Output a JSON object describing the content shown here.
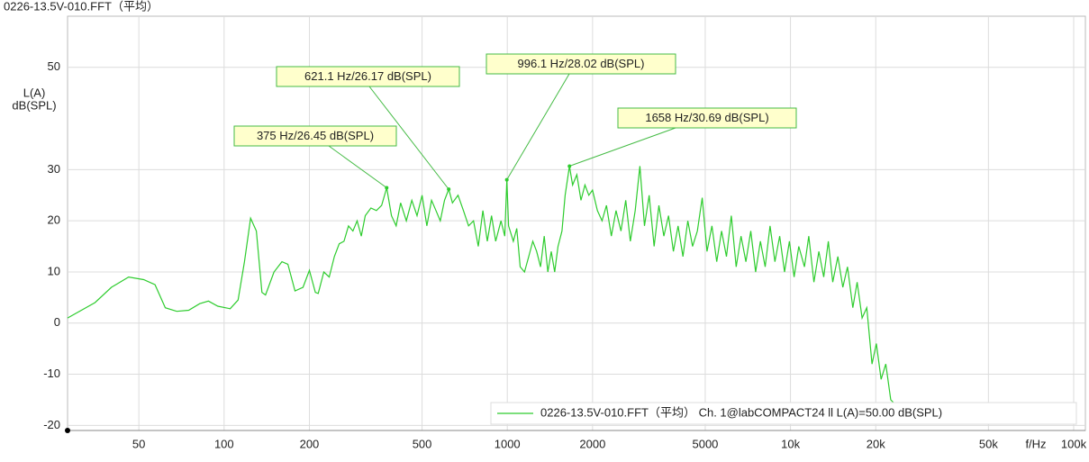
{
  "chart_data": {
    "type": "line",
    "title": "0226-13.5V-010.FFT（平均）",
    "ylabel": [
      "L(A)",
      "dB(SPL)"
    ],
    "xlabel": "f/Hz",
    "xscale": "log",
    "xlim": [
      28,
      110000
    ],
    "ylim": [
      -21,
      60
    ],
    "xticks": [
      50,
      100,
      200,
      500,
      1000,
      2000,
      5000,
      {
        "value": 10000,
        "label": "10k"
      },
      {
        "value": 20000,
        "label": "20k"
      },
      {
        "value": 50000,
        "label": "50k"
      },
      {
        "value": 100000,
        "label": "100k"
      }
    ],
    "yticks": [
      -20,
      -10,
      0,
      10,
      20,
      30,
      50
    ],
    "grid": true,
    "legend": "lower right",
    "x": [
      28,
      35,
      40,
      46,
      52,
      57,
      62,
      68,
      75,
      82,
      88,
      95,
      105,
      112,
      118,
      124,
      130,
      136,
      140,
      150,
      160,
      168,
      178,
      190,
      200,
      210,
      215,
      225,
      235,
      245,
      255,
      265,
      275,
      285,
      295,
      305,
      315,
      330,
      345,
      360,
      375,
      390,
      405,
      420,
      440,
      460,
      480,
      500,
      520,
      540,
      560,
      580,
      600,
      621.1,
      640,
      670,
      700,
      730,
      760,
      790,
      820,
      850,
      880,
      910,
      950,
      980,
      996.1,
      1010,
      1050,
      1080,
      1110,
      1150,
      1190,
      1230,
      1270,
      1310,
      1350,
      1390,
      1430,
      1470,
      1510,
      1560,
      1600,
      1658,
      1700,
      1760,
      1820,
      1880,
      1940,
      2000,
      2080,
      2160,
      2240,
      2330,
      2420,
      2520,
      2620,
      2720,
      2830,
      2940,
      3050,
      3170,
      3300,
      3430,
      3570,
      3710,
      3860,
      4010,
      4170,
      4340,
      4510,
      4690,
      4880,
      5070,
      5280,
      5490,
      5710,
      5940,
      6180,
      6430,
      6690,
      6960,
      7240,
      7530,
      7830,
      8140,
      8470,
      8810,
      9160,
      9530,
      9910,
      10300,
      10700,
      11200,
      11600,
      12100,
      12600,
      13100,
      13600,
      14100,
      14700,
      15300,
      15900,
      16600,
      17200,
      17900,
      18600,
      19400,
      20100,
      20900,
      21700,
      22600,
      23500
    ],
    "series": [
      {
        "name": "0226-13.5V-010.FFT（平均） Ch. 1@labCOMPACT24 ll L(A)=50.00 dB(SPL)",
        "color": "#2ecc2e",
        "values": [
          1,
          4,
          7,
          9,
          8.5,
          7.5,
          3,
          2.3,
          2.5,
          3.8,
          4.3,
          3.3,
          2.8,
          4.5,
          12,
          20.5,
          18,
          6,
          5.5,
          10,
          12,
          11.5,
          6.3,
          7,
          10.3,
          6,
          5.8,
          10,
          9,
          13,
          15.5,
          16,
          19,
          18,
          20,
          17,
          21,
          22.5,
          22,
          23,
          26.45,
          21,
          19,
          23.5,
          20,
          24,
          21,
          25,
          19,
          24,
          22,
          20,
          24,
          26.17,
          23.5,
          25,
          22,
          19,
          20,
          15,
          22,
          16,
          21,
          16,
          20,
          17,
          28.02,
          19,
          16,
          18.5,
          11,
          10,
          13,
          16,
          14,
          11,
          17,
          10,
          14,
          10,
          15,
          18,
          25,
          30.69,
          27,
          29,
          24,
          27,
          25,
          26,
          22,
          20,
          23,
          17,
          22,
          18,
          24,
          16,
          22,
          30.7,
          19,
          25,
          15,
          23,
          17,
          21,
          14,
          19,
          13,
          20,
          15,
          18,
          24.5,
          14,
          19,
          12,
          18,
          13,
          21,
          11,
          17,
          12,
          18,
          10,
          16,
          11,
          19,
          12,
          17,
          10,
          16,
          9,
          15,
          11,
          17,
          8,
          14,
          9,
          16,
          8,
          13,
          7,
          11,
          3,
          8,
          1,
          3,
          -8,
          -4,
          -11,
          -8,
          -15,
          -16
        ]
      }
    ],
    "annotations": [
      {
        "text": "375 Hz/26.45 dB(SPL)",
        "x": 375,
        "y": 26.45
      },
      {
        "text": "621.1 Hz/26.17 dB(SPL)",
        "x": 621.1,
        "y": 26.17
      },
      {
        "text": "996.1 Hz/28.02 dB(SPL)",
        "x": 996.1,
        "y": 28.02
      },
      {
        "text": "1658 Hz/30.69 dB(SPL)",
        "x": 1658,
        "y": 30.69
      }
    ]
  }
}
